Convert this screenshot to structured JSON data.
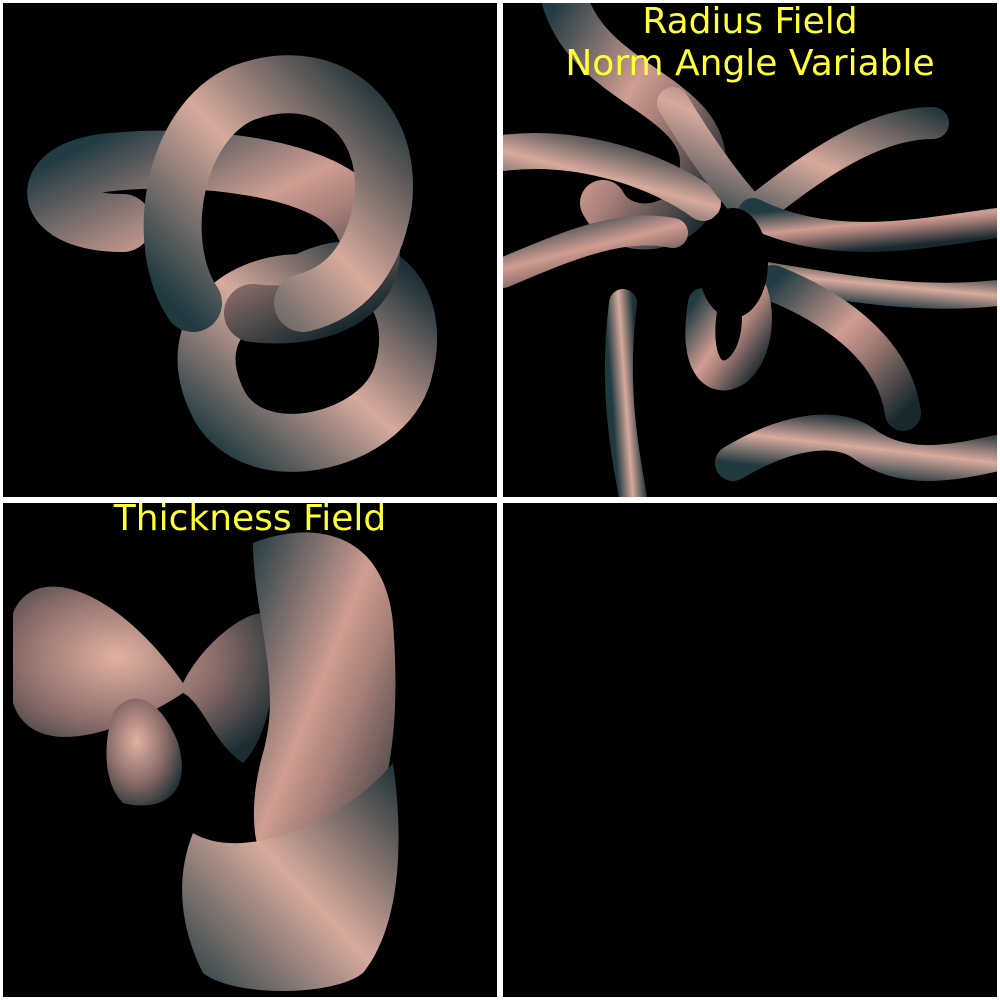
{
  "panels": {
    "top_left": {
      "title_line1": "",
      "title_line2": ""
    },
    "top_right": {
      "title_line1": "Radius Field",
      "title_line2": "Norm Angle Variable"
    },
    "bottom_left": {
      "title_line1": "Thickness Field",
      "title_line2": ""
    },
    "bottom_right": {
      "title_line1": "",
      "title_line2": ""
    }
  },
  "colors": {
    "background": "#000000",
    "divider": "#ffffff",
    "caption": "#ffff33",
    "surface_highlight": "#e8b4a6",
    "surface_shadow": "#1d3238"
  }
}
